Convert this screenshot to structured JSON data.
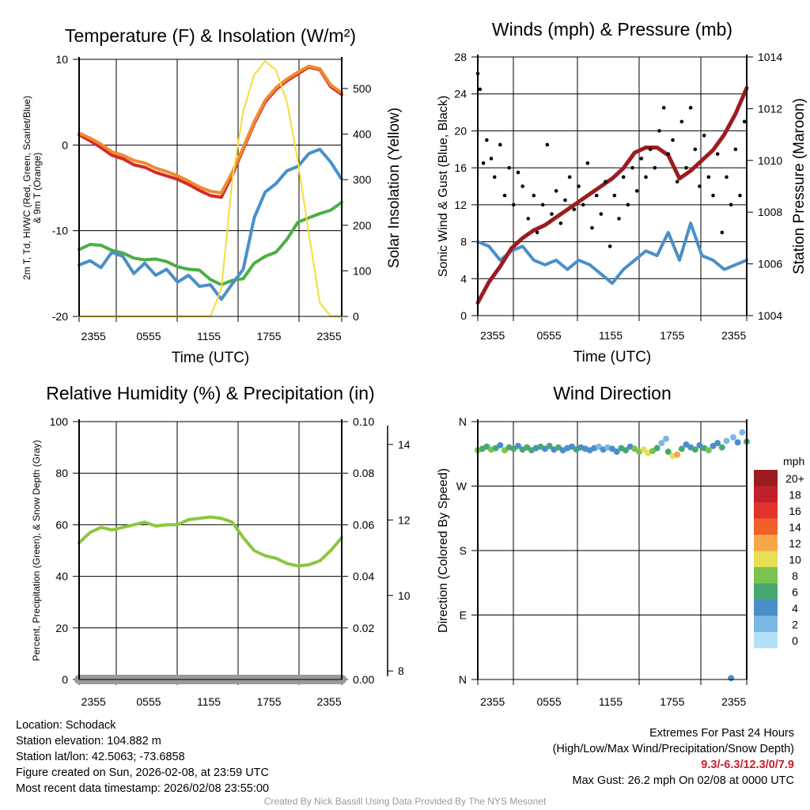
{
  "chart_data": [
    {
      "type": "line",
      "title": "Temperature (F) & Insolation (W/m²)",
      "xlabel": "Time (UTC)",
      "ylabel": [
        "2m T, Td, HI/WC (Red, Green, Scarlet/Blue)",
        "& 9m T (Orange)"
      ],
      "ylabel_right": "Solar Insolation (Yellow)",
      "xticks": [
        "2355",
        "0555",
        "1155",
        "1755",
        "2355"
      ],
      "yticks": [
        "-20",
        "-10",
        "0",
        "10"
      ],
      "yticks_right": [
        "0",
        "100",
        "200",
        "300",
        "400",
        "500"
      ],
      "ylim": [
        -20,
        10
      ],
      "ylim_right": [
        0,
        564
      ],
      "x_hours": [
        0,
        1,
        2,
        3,
        4,
        5,
        6,
        7,
        8,
        9,
        10,
        11,
        12,
        13,
        14,
        15,
        16,
        17,
        18,
        19,
        20,
        21,
        22,
        23,
        24
      ],
      "series": [
        {
          "name": "2m T",
          "color": "#d42a25",
          "axis": "left",
          "values": [
            1.2,
            0.5,
            -0.3,
            -1.2,
            -1.6,
            -2.3,
            -2.6,
            -3.2,
            -3.6,
            -4.0,
            -4.6,
            -5.3,
            -5.9,
            -6.1,
            -3.5,
            -0.5,
            2.5,
            5.0,
            6.5,
            7.5,
            8.3,
            9.1,
            8.8,
            6.8,
            5.9
          ]
        },
        {
          "name": "9m T",
          "color": "#f08a30",
          "axis": "left",
          "values": [
            1.4,
            0.8,
            0.1,
            -0.8,
            -1.2,
            -1.8,
            -2.1,
            -2.7,
            -3.1,
            -3.6,
            -4.2,
            -4.9,
            -5.4,
            -5.6,
            -3.2,
            -0.3,
            2.7,
            5.2,
            6.7,
            7.7,
            8.5,
            9.2,
            8.9,
            7.0,
            6.1
          ]
        },
        {
          "name": "Td",
          "color": "#4cae45",
          "axis": "left",
          "values": [
            -12.2,
            -11.6,
            -11.7,
            -12.3,
            -12.6,
            -13.2,
            -13.4,
            -13.3,
            -13.6,
            -14.2,
            -14.5,
            -14.6,
            -15.7,
            -16.3,
            -15.8,
            -15.6,
            -13.8,
            -13.0,
            -12.5,
            -11.0,
            -9.0,
            -8.5,
            -8.0,
            -7.6,
            -6.7
          ]
        },
        {
          "name": "HI/WC",
          "color": "#4a8fc8",
          "axis": "left",
          "values": [
            -14.0,
            -13.5,
            -14.3,
            -12.5,
            -13.0,
            -15.0,
            -13.8,
            -15.2,
            -14.5,
            -16.0,
            -15.2,
            -16.5,
            -16.3,
            -18.0,
            -16.2,
            -14.5,
            -8.5,
            -5.5,
            -4.5,
            -3.0,
            -2.5,
            -1.0,
            -0.5,
            -2.0,
            -4.0
          ]
        },
        {
          "name": "Solar Insolation",
          "color": "#f5dc3c",
          "axis": "right",
          "values": [
            0,
            0,
            0,
            0,
            0,
            0,
            0,
            0,
            0,
            0,
            0,
            0,
            0,
            60,
            300,
            450,
            530,
            560,
            540,
            470,
            340,
            180,
            30,
            0,
            0
          ]
        }
      ]
    },
    {
      "type": "line",
      "title": "Winds (mph) & Pressure (mb)",
      "xlabel": "Time (UTC)",
      "ylabel": "Sonic Wind & Gust (Blue, Black)",
      "ylabel_right": "Station Pressure (Maroon)",
      "xticks": [
        "2355",
        "0555",
        "1155",
        "1755",
        "2355"
      ],
      "yticks": [
        "0",
        "4",
        "8",
        "12",
        "16",
        "20",
        "24",
        "28"
      ],
      "yticks_right": [
        "1004",
        "1006",
        "1008",
        "1010",
        "1012",
        "1014"
      ],
      "ylim": [
        0,
        28
      ],
      "ylim_right": [
        1004,
        1014
      ],
      "x_hours": [
        0,
        1,
        2,
        3,
        4,
        5,
        6,
        7,
        8,
        9,
        10,
        11,
        12,
        13,
        14,
        15,
        16,
        17,
        18,
        19,
        20,
        21,
        22,
        23,
        24
      ],
      "series": [
        {
          "name": "Sonic Wind",
          "color": "#4a8fc8",
          "axis": "left",
          "values": [
            8,
            7.5,
            6,
            7,
            7.5,
            6,
            5.5,
            6,
            5,
            6,
            5.5,
            4.5,
            3.5,
            5,
            6,
            7,
            6.5,
            9,
            6,
            10,
            6.5,
            6,
            5,
            5.5,
            6
          ]
        },
        {
          "name": "Station Pressure",
          "color": "#9b1c20",
          "axis": "right",
          "values": [
            1004.5,
            1005.3,
            1005.9,
            1006.6,
            1007.0,
            1007.3,
            1007.5,
            1007.8,
            1008.1,
            1008.4,
            1008.7,
            1009.0,
            1009.3,
            1009.7,
            1010.3,
            1010.5,
            1010.5,
            1010.2,
            1009.3,
            1009.6,
            1010.0,
            1010.4,
            1011.0,
            1011.8,
            1012.8
          ]
        }
      ],
      "gusts": {
        "name": "Gust",
        "color": "#000000",
        "points": [
          [
            0,
            26.2
          ],
          [
            0.2,
            24.5
          ],
          [
            0.5,
            16.5
          ],
          [
            0.8,
            19
          ],
          [
            1.2,
            17
          ],
          [
            1.5,
            15
          ],
          [
            2,
            18.5
          ],
          [
            2.4,
            13
          ],
          [
            2.8,
            16
          ],
          [
            3.2,
            12
          ],
          [
            3.6,
            15.5
          ],
          [
            4,
            14
          ],
          [
            4.5,
            10.5
          ],
          [
            5,
            13
          ],
          [
            5.3,
            9
          ],
          [
            5.8,
            12
          ],
          [
            6.2,
            18.5
          ],
          [
            6.6,
            11
          ],
          [
            7,
            13.5
          ],
          [
            7.4,
            10
          ],
          [
            7.8,
            12.5
          ],
          [
            8.2,
            15
          ],
          [
            8.6,
            11.5
          ],
          [
            9,
            14
          ],
          [
            9.4,
            12
          ],
          [
            9.8,
            16.5
          ],
          [
            10.2,
            9.5
          ],
          [
            10.6,
            13
          ],
          [
            11,
            11
          ],
          [
            11.4,
            14.5
          ],
          [
            11.8,
            7.5
          ],
          [
            12.2,
            13
          ],
          [
            12.6,
            10.5
          ],
          [
            13,
            15
          ],
          [
            13.4,
            12
          ],
          [
            13.8,
            16
          ],
          [
            14.2,
            13.5
          ],
          [
            14.6,
            17
          ],
          [
            15,
            15
          ],
          [
            15.4,
            18
          ],
          [
            15.8,
            16
          ],
          [
            16.2,
            20
          ],
          [
            16.6,
            22.5
          ],
          [
            17,
            17.5
          ],
          [
            17.4,
            19
          ],
          [
            17.8,
            14.5
          ],
          [
            18.2,
            21
          ],
          [
            18.6,
            16
          ],
          [
            19,
            22.5
          ],
          [
            19.4,
            18
          ],
          [
            19.8,
            14
          ],
          [
            20.2,
            19.5
          ],
          [
            20.6,
            15
          ],
          [
            21,
            13
          ],
          [
            21.4,
            17.5
          ],
          [
            21.8,
            9
          ],
          [
            22.2,
            15
          ],
          [
            22.6,
            12
          ],
          [
            23,
            18
          ],
          [
            23.4,
            13
          ],
          [
            23.8,
            21
          ]
        ]
      }
    },
    {
      "type": "line",
      "title": "Relative Humidity (%) & Precipitation (in)",
      "ylabel": "Percent, Precipitation (Green), & Snow Depth (Gray)",
      "xticks": [
        "2355",
        "0555",
        "1155",
        "1755",
        "2355"
      ],
      "yticks": [
        "0",
        "20",
        "40",
        "60",
        "80",
        "100"
      ],
      "yticks_right": [
        "0.00",
        "0.02",
        "0.04",
        "0.06",
        "0.08",
        "0.10"
      ],
      "yticks_snow": [
        "8",
        "10",
        "12",
        "14"
      ],
      "ylim": [
        0,
        100
      ],
      "ylim_right": [
        0,
        0.1
      ],
      "ylim_snow": [
        7.9,
        14.5
      ],
      "x_hours": [
        0,
        1,
        2,
        3,
        4,
        5,
        6,
        7,
        8,
        9,
        10,
        11,
        12,
        13,
        14,
        15,
        16,
        17,
        18,
        19,
        20,
        21,
        22,
        23,
        24
      ],
      "series": [
        {
          "name": "Relative Humidity",
          "color": "#8cc63f",
          "axis": "left",
          "values": [
            53,
            57,
            59,
            58,
            59,
            60,
            61,
            59.5,
            60,
            60,
            62,
            62.5,
            63,
            62.5,
            61,
            55,
            50,
            48,
            47,
            45,
            44,
            44.5,
            46,
            50,
            55
          ]
        },
        {
          "name": "Precipitation",
          "color": "#3aaa35",
          "axis": "right",
          "values": [
            0,
            0,
            0,
            0,
            0,
            0,
            0,
            0,
            0,
            0,
            0,
            0,
            0,
            0,
            0,
            0,
            0,
            0,
            0,
            0,
            0,
            0,
            0,
            0,
            0
          ]
        },
        {
          "name": "Snow Depth",
          "color": "#999999",
          "axis": "snow",
          "values": [
            7.9,
            7.9,
            7.9,
            7.9,
            7.9,
            7.9,
            7.9,
            7.9,
            7.9,
            7.9,
            7.9,
            7.9,
            7.9,
            7.9,
            7.9,
            7.9,
            7.9,
            7.9,
            7.9,
            7.9,
            7.9,
            7.9,
            7.9,
            7.9,
            7.9
          ]
        }
      ]
    },
    {
      "type": "scatter",
      "title": "Wind Direction",
      "ylabel": "Direction (Colored By Speed)",
      "xticks": [
        "2355",
        "0555",
        "1155",
        "1755",
        "2355"
      ],
      "yticks": [
        "N",
        "E",
        "S",
        "W",
        "N"
      ],
      "ylim": [
        0,
        360
      ],
      "legend": {
        "title": "mph",
        "placement": "right",
        "entries": [
          {
            "label": "20+",
            "color": "#9b1c20"
          },
          {
            "label": "18",
            "color": "#c0202a"
          },
          {
            "label": "16",
            "color": "#e0332b"
          },
          {
            "label": "14",
            "color": "#f0612a"
          },
          {
            "label": "12",
            "color": "#f7a64a"
          },
          {
            "label": "10",
            "color": "#e7df55"
          },
          {
            "label": "8",
            "color": "#7cc24e"
          },
          {
            "label": "6",
            "color": "#48a872"
          },
          {
            "label": "4",
            "color": "#4a8fc8"
          },
          {
            "label": "2",
            "color": "#7ab8e4"
          },
          {
            "label": "0",
            "color": "#b4e0f7"
          }
        ]
      },
      "points": [
        [
          0,
          320,
          8
        ],
        [
          0.4,
          322,
          7
        ],
        [
          0.8,
          325,
          6
        ],
        [
          1.2,
          321,
          9
        ],
        [
          1.6,
          323,
          7
        ],
        [
          2,
          327,
          5
        ],
        [
          2.4,
          320,
          8
        ],
        [
          2.8,
          324,
          6
        ],
        [
          3.2,
          322,
          7
        ],
        [
          3.6,
          326,
          5
        ],
        [
          4,
          321,
          7
        ],
        [
          4.4,
          324,
          6
        ],
        [
          4.8,
          320,
          7
        ],
        [
          5.2,
          323,
          5
        ],
        [
          5.6,
          325,
          6
        ],
        [
          6,
          322,
          5
        ],
        [
          6.4,
          326,
          7
        ],
        [
          6.8,
          321,
          4
        ],
        [
          7.2,
          324,
          6
        ],
        [
          7.6,
          320,
          5
        ],
        [
          8,
          323,
          4
        ],
        [
          8.4,
          325,
          5
        ],
        [
          8.8,
          321,
          6
        ],
        [
          9.2,
          324,
          4
        ],
        [
          9.6,
          322,
          5
        ],
        [
          10,
          320,
          4
        ],
        [
          10.4,
          323,
          5
        ],
        [
          10.8,
          325,
          3
        ],
        [
          11.2,
          321,
          4
        ],
        [
          11.6,
          324,
          3
        ],
        [
          12,
          322,
          4
        ],
        [
          12.4,
          318,
          5
        ],
        [
          12.8,
          323,
          6
        ],
        [
          13.2,
          320,
          7
        ],
        [
          13.6,
          325,
          5
        ],
        [
          14,
          322,
          8
        ],
        [
          14.4,
          318,
          9
        ],
        [
          14.8,
          321,
          10
        ],
        [
          15.2,
          316,
          10
        ],
        [
          15.6,
          319,
          8
        ],
        [
          16,
          323,
          6
        ],
        [
          16.4,
          330,
          3
        ],
        [
          16.8,
          336,
          2
        ],
        [
          17,
          318,
          6
        ],
        [
          17.4,
          312,
          11
        ],
        [
          17.8,
          314,
          12
        ],
        [
          18.2,
          322,
          6
        ],
        [
          18.6,
          328,
          5
        ],
        [
          19,
          324,
          4
        ],
        [
          19.4,
          321,
          6
        ],
        [
          19.8,
          327,
          5
        ],
        [
          20.2,
          323,
          7
        ],
        [
          20.6,
          320,
          8
        ],
        [
          21,
          326,
          5
        ],
        [
          21.4,
          330,
          4
        ],
        [
          21.8,
          324,
          6
        ],
        [
          22.2,
          333,
          3
        ],
        [
          22.6,
          2,
          4
        ],
        [
          22.8,
          338,
          2
        ],
        [
          23.2,
          331,
          4
        ],
        [
          23.6,
          345,
          2
        ],
        [
          24,
          332,
          6
        ]
      ]
    }
  ],
  "footer": {
    "left": [
      "Location: Schodack",
      "Station elevation: 104.882 m",
      "Station lat/lon: 42.5063; -73.6858",
      "Figure created on Sun, 2026-02-08, at 23:59 UTC",
      "Most recent data timestamp: 2026/02/08 23:55:00"
    ],
    "extremes_title": "Extremes For Past 24 Hours",
    "extremes_fields": "(High/Low/Max Wind/Precipitation/Snow Depth)",
    "extremes_values": "9.3/-6.3/12.3/0/7.9",
    "max_gust": "Max Gust: 26.2 mph On 02/08 at 0000 UTC",
    "credit": "Created By Nick Bassill Using Data Provided By The NYS Mesonet"
  }
}
